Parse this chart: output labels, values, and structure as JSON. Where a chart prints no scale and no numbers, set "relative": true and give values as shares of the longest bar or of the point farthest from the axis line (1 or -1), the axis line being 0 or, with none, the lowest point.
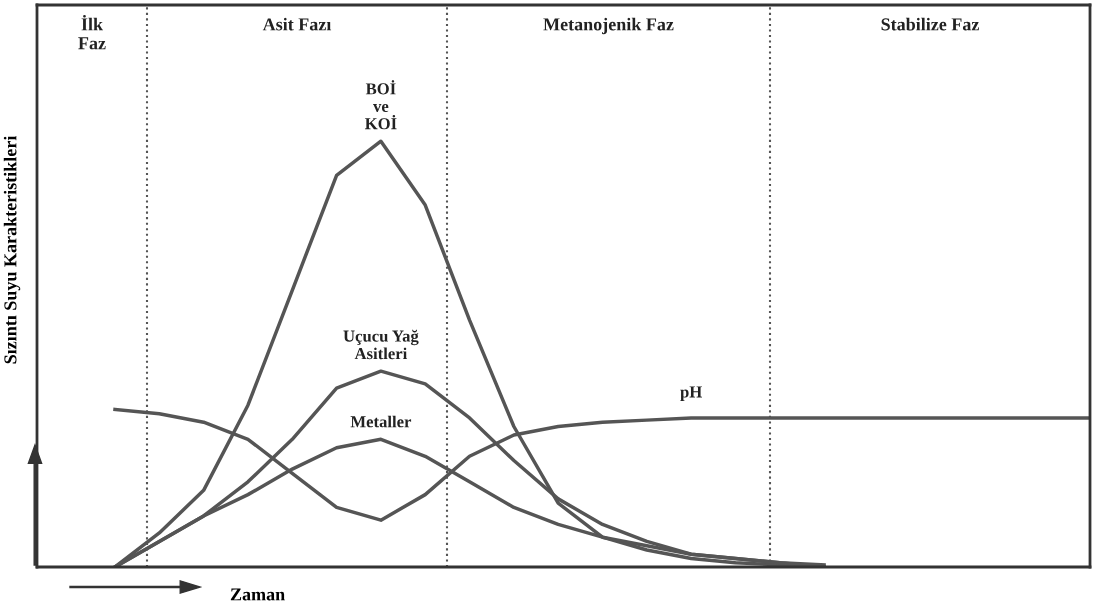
{
  "chart_data": {
    "type": "line",
    "relative": true,
    "xlabel": "Zaman",
    "ylabel": "Sızıntı Suyu Karakteristikleri",
    "line_style": "solid",
    "categories": [
      null,
      null,
      null,
      null,
      null,
      null,
      null,
      null,
      null,
      null,
      null,
      null,
      null,
      null,
      null,
      null,
      null,
      null,
      null,
      null,
      null,
      null,
      null
    ],
    "series": [
      {
        "name": "BOİ\nve\nKOİ",
        "color": "#555555",
        "values": [
          0,
          0.08,
          0.18,
          0.38,
          0.65,
          0.92,
          1.0,
          0.85,
          0.58,
          0.33,
          0.15,
          0.07,
          0.04,
          0.02,
          0.01,
          0.005,
          0,
          null,
          null,
          null,
          null,
          null,
          null
        ]
      },
      {
        "name": "Uçucu Yağ\nAsitleri",
        "color": "#555555",
        "values": [
          0,
          0.06,
          0.12,
          0.2,
          0.3,
          0.42,
          0.46,
          0.43,
          0.35,
          0.25,
          0.16,
          0.1,
          0.06,
          0.03,
          0.02,
          0.01,
          0,
          null,
          null,
          null,
          null,
          null,
          null
        ]
      },
      {
        "name": "Metaller",
        "color": "#555555",
        "values": [
          0,
          0.06,
          0.12,
          0.17,
          0.23,
          0.28,
          0.3,
          0.26,
          0.2,
          0.14,
          0.1,
          0.07,
          0.05,
          0.03,
          0.02,
          0.01,
          0.005,
          null,
          null,
          null,
          null,
          null,
          null
        ]
      },
      {
        "name": "pH",
        "color": "#555555",
        "values": [
          0.37,
          0.36,
          0.34,
          0.3,
          0.22,
          0.14,
          0.11,
          0.17,
          0.26,
          0.31,
          0.33,
          0.34,
          0.345,
          0.35,
          0.35,
          0.35,
          0.35,
          0.35,
          0.35,
          0.35,
          0.35,
          0.35,
          0.35
        ]
      }
    ],
    "annotations": [
      "İlk\nFaz",
      "Asit Fazı",
      "Metanojenik Faz",
      "Stabilize Faz"
    ]
  }
}
